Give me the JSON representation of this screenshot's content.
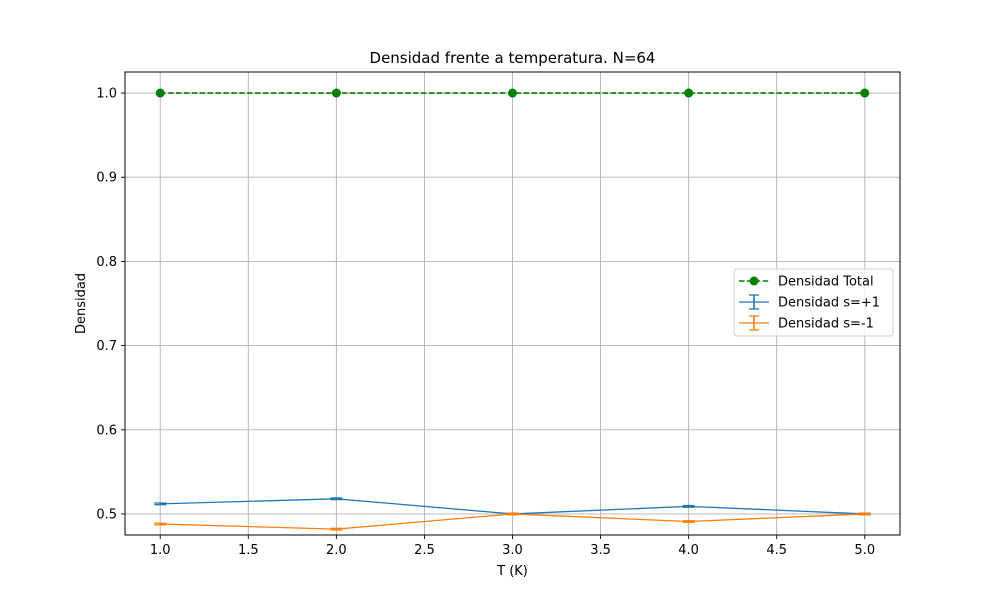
{
  "chart_data": {
    "type": "line",
    "title": "Densidad frente a temperatura. N=64",
    "xlabel": "T (K)",
    "ylabel": "Densidad",
    "xlim": [
      0.8,
      5.2
    ],
    "ylim": [
      0.475,
      1.025
    ],
    "xticks": [
      1.0,
      1.5,
      2.0,
      2.5,
      3.0,
      3.5,
      4.0,
      4.5,
      5.0
    ],
    "yticks": [
      0.5,
      0.6,
      0.7,
      0.8,
      0.9,
      1.0
    ],
    "xtick_labels": [
      "1.0",
      "1.5",
      "2.0",
      "2.5",
      "3.0",
      "3.5",
      "4.0",
      "4.5",
      "5.0"
    ],
    "ytick_labels": [
      "0.5",
      "0.6",
      "0.7",
      "0.8",
      "0.9",
      "1.0"
    ],
    "grid": true,
    "legend_position": "center-right",
    "x": [
      1.0,
      2.0,
      3.0,
      4.0,
      5.0
    ],
    "series": [
      {
        "name": "Densidad Total",
        "values": [
          1.0,
          1.0,
          1.0,
          1.0,
          1.0
        ],
        "style": "dashed-line-circle-markers",
        "color": "#008000"
      },
      {
        "name": "Densidad s=+1",
        "values": [
          0.512,
          0.518,
          0.5,
          0.509,
          0.5
        ],
        "errors": [
          0.001,
          0.001,
          0.001,
          0.001,
          0.001
        ],
        "style": "line-errorbars",
        "color": "#1f77b4"
      },
      {
        "name": "Densidad s=-1",
        "values": [
          0.488,
          0.482,
          0.5,
          0.491,
          0.5
        ],
        "errors": [
          0.001,
          0.001,
          0.001,
          0.001,
          0.001
        ],
        "style": "line-errorbars",
        "color": "#ff7f0e"
      }
    ]
  }
}
